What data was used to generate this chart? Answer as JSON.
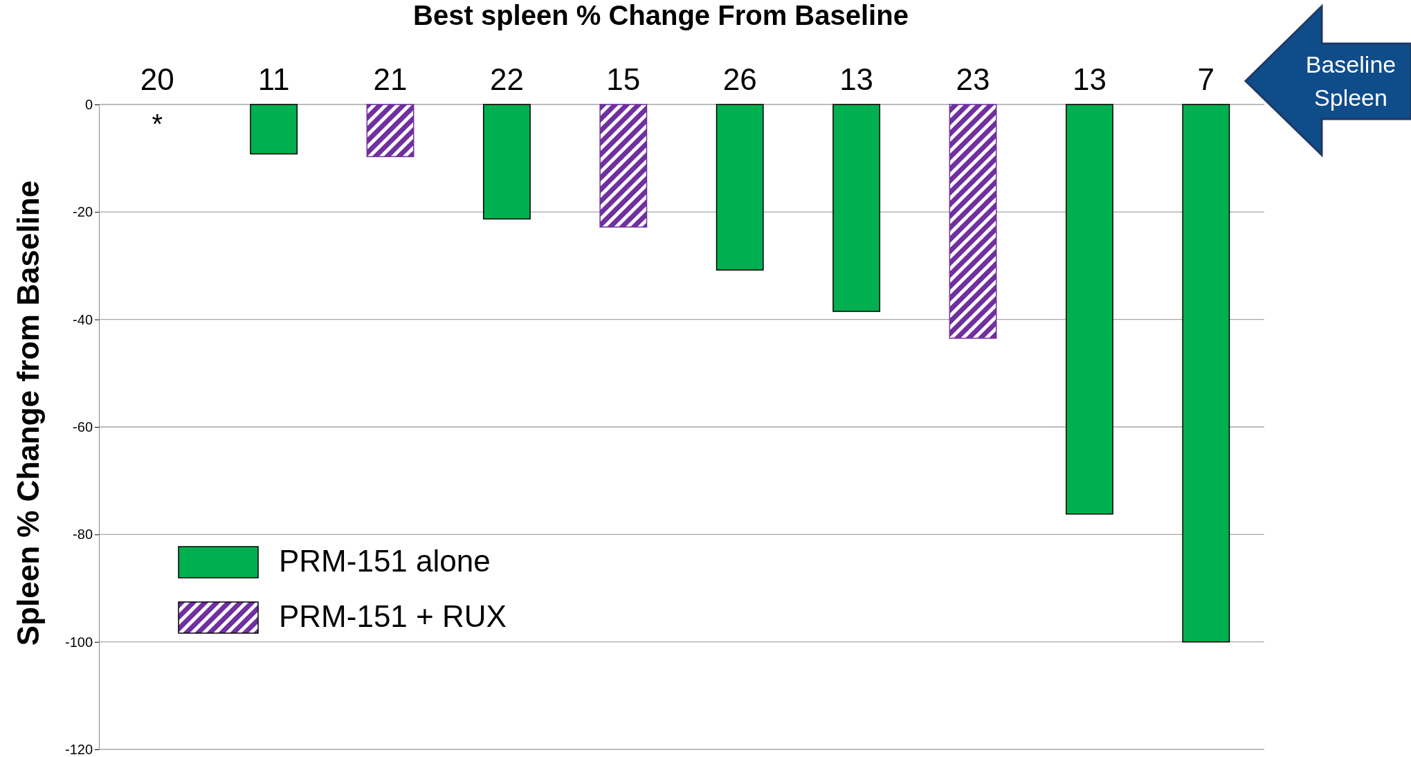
{
  "chart_data": {
    "type": "bar",
    "title": "Best spleen % Change From Baseline",
    "ylabel": "Spleen % Change from Baseline",
    "categories": [
      "20",
      "11",
      "21",
      "22",
      "15",
      "26",
      "13",
      "23",
      "13",
      "7"
    ],
    "series": [
      {
        "name": "PRM-151 alone",
        "color": "#00b050",
        "values": [
          0,
          -9.2,
          null,
          -21.3,
          null,
          -30.8,
          -38.5,
          null,
          -76.2,
          -100
        ]
      },
      {
        "name": "PRM-151 + RUX",
        "color": "#7030a0",
        "values": [
          null,
          null,
          -9.7,
          null,
          -22.8,
          null,
          null,
          -43.5,
          null,
          null
        ]
      }
    ],
    "ylim": [
      -120,
      0
    ],
    "yticks": [
      -120,
      -100,
      -80,
      -60,
      -40,
      -20,
      0
    ],
    "grid": "y",
    "legend": "bottom left",
    "annotations": [
      "*",
      "Baseline Spleen"
    ]
  }
}
